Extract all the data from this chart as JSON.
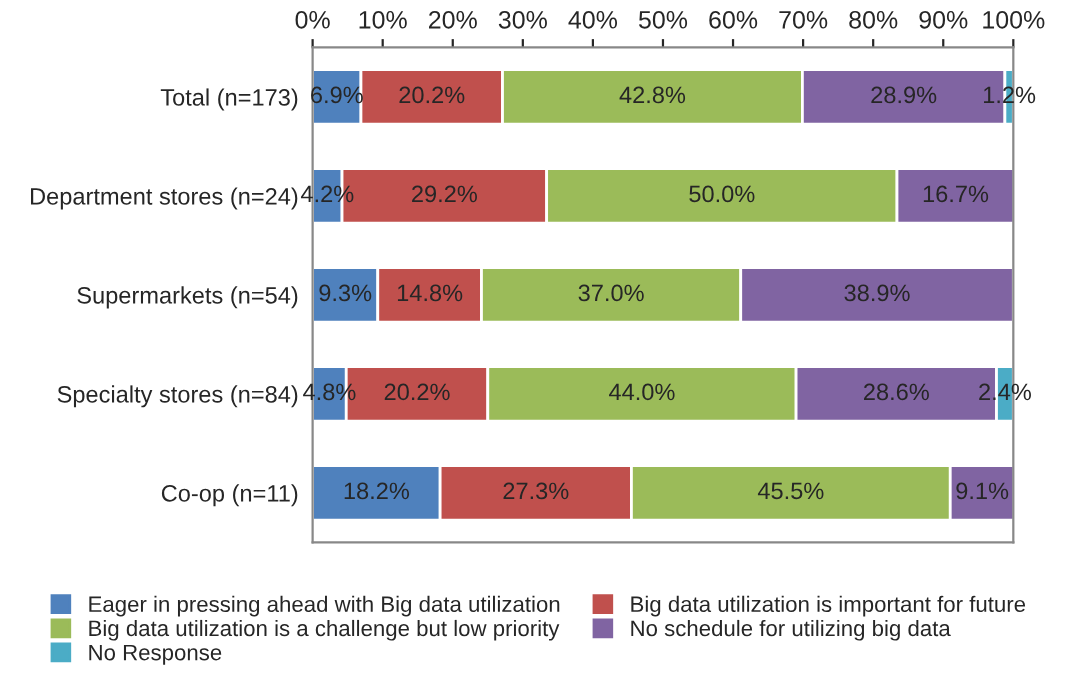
{
  "chart_data": {
    "type": "bar",
    "orientation": "horizontal",
    "stacked": true,
    "categories": [
      "Total (n=173)",
      "Department stores (n=24)",
      "Supermarkets (n=54)",
      "Specialty stores (n=84)",
      "Co-op (n=11)"
    ],
    "series": [
      {
        "name": "Eager in pressing ahead with Big data utilization",
        "color": "#4f81bd",
        "values": [
          6.9,
          4.2,
          9.3,
          4.8,
          18.2
        ],
        "value_labels": [
          "6.9%",
          "4.2%",
          "9.3%",
          "4.8%",
          "18.2%"
        ]
      },
      {
        "name": "Big data utilization is important for future",
        "color": "#c0504d",
        "values": [
          20.2,
          29.2,
          14.8,
          20.2,
          27.3
        ],
        "value_labels": [
          "20.2%",
          "29.2%",
          "14.8%",
          "20.2%",
          "27.3%"
        ]
      },
      {
        "name": "Big data utilization is a challenge but low priority",
        "color": "#9bbb59",
        "values": [
          42.8,
          50.0,
          37.0,
          44.0,
          45.5
        ],
        "value_labels": [
          "42.8%",
          "50.0%",
          "37.0%",
          "44.0%",
          "45.5%"
        ]
      },
      {
        "name": "No schedule for utilizing big data",
        "color": "#8064a2",
        "values": [
          28.9,
          16.7,
          38.9,
          28.6,
          9.1
        ],
        "value_labels": [
          "28.9%",
          "16.7%",
          "38.9%",
          "28.6%",
          "9.1%"
        ]
      },
      {
        "name": "No Response",
        "color": "#4bacc6",
        "values": [
          1.2,
          null,
          null,
          2.4,
          null
        ],
        "value_labels": [
          "1.2%",
          null,
          null,
          "2.4%",
          null
        ]
      }
    ],
    "xlim": [
      0,
      100
    ],
    "xticks": [
      {
        "value": 0,
        "label": "0%"
      },
      {
        "value": 10,
        "label": "10%"
      },
      {
        "value": 20,
        "label": "20%"
      },
      {
        "value": 30,
        "label": "30%"
      },
      {
        "value": 40,
        "label": "40%"
      },
      {
        "value": 50,
        "label": "50%"
      },
      {
        "value": 60,
        "label": "60%"
      },
      {
        "value": 70,
        "label": "70%"
      },
      {
        "value": 80,
        "label": "80%"
      },
      {
        "value": 90,
        "label": "90%"
      },
      {
        "value": 100,
        "label": "100%"
      }
    ],
    "grid": false,
    "legend": "bottom"
  }
}
